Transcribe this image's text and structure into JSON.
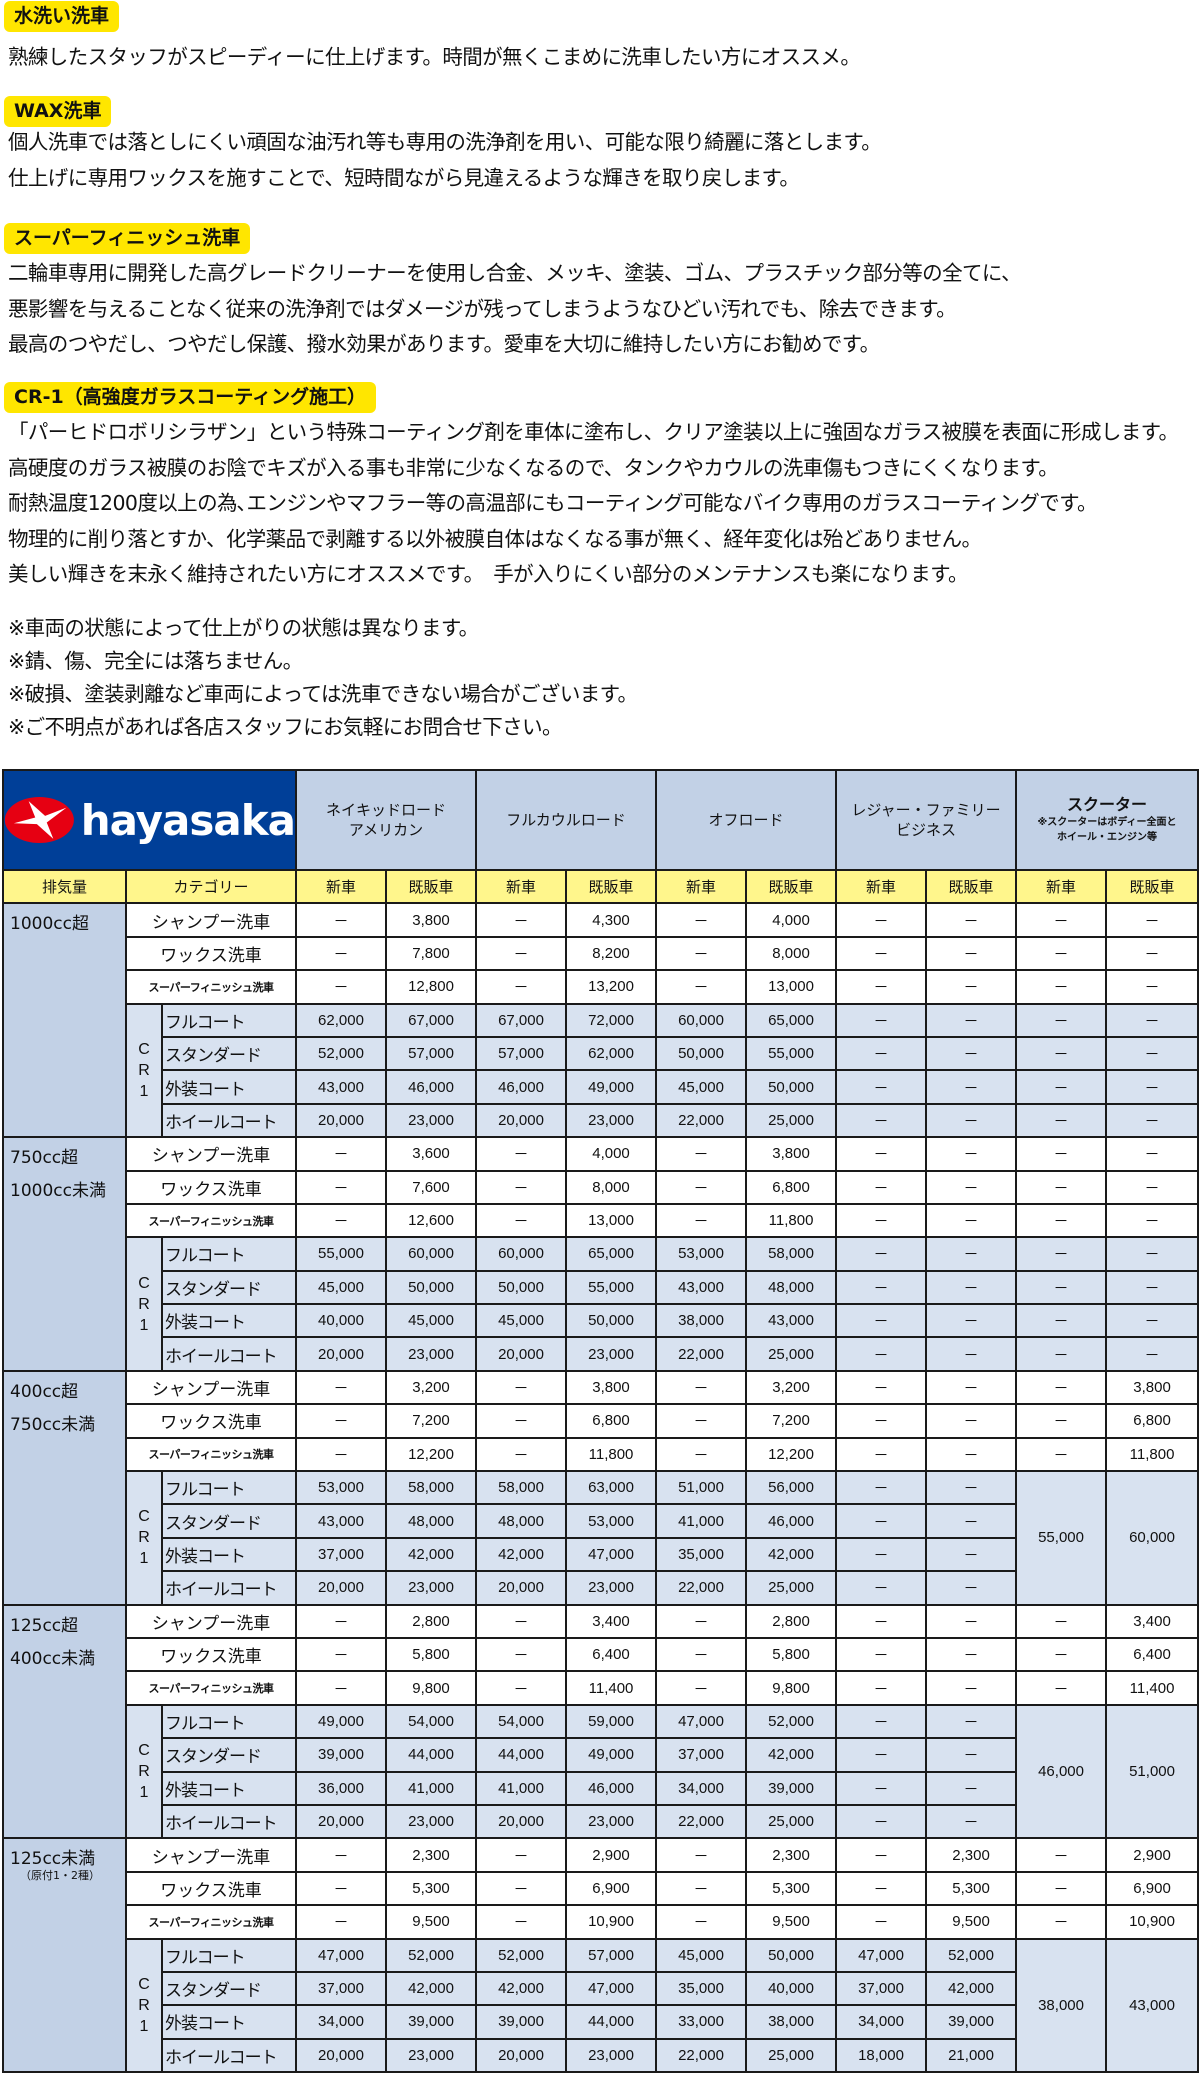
{
  "intro": {
    "sections": [
      {
        "heading": "水洗い洗車",
        "lines": [
          "熟練したスタッフがスピーディーに仕上げます。時間が無くこまめに洗車したい方にオススメ。"
        ]
      },
      {
        "heading": "WAX洗車",
        "lines": [
          "個人洗車では落としにくい頑固な油汚れ等も専用の洗浄剤を用い、可能な限り綺麗に落とします。",
          "仕上げに専用ワックスを施すことで、短時間ながら見違えるような輝きを取り戻します。"
        ]
      },
      {
        "heading": "スーパーフィニッシュ洗車",
        "lines": [
          "二輪車専用に開発した高グレードクリーナーを使用し合金、メッキ、塗装、ゴム、プラスチック部分等の全てに、",
          "悪影響を与えることなく従来の洗浄剤ではダメージが残ってしまうようなひどい汚れでも、除去できます。",
          "最高のつやだし、つやだし保護、撥水効果があります。愛車を大切に維持したい方にお勧めです。"
        ]
      },
      {
        "heading": "CR-1（高強度ガラスコーティング施工）",
        "lines": [
          "「パーヒドロボリシラザン」という特殊コーティング剤を車体に塗布し、クリア塗装以上に強固なガラス被膜を表面に形成します。",
          "高硬度のガラス被膜のお陰でキズが入る事も非常に少なくなるので、タンクやカウルの洗車傷もつきにくくなります。",
          "耐熱温度1200度以上の為､エンジンやマフラー等の高温部にもコーティング可能なバイク専用のガラスコーティングです。",
          "物理的に削り落とすか、化学薬品で剥離する以外被膜自体はなくなる事が無く、経年変化は殆どありません。",
          "美しい輝きを末永く維持されたい方にオススメです。　手が入りにくい部分のメンテナンスも楽になります。"
        ]
      }
    ],
    "notes": [
      "※車両の状態によって仕上がりの状態は異なります。",
      "※錆、傷、完全には落ちません。",
      "※破損、塗装剥離など車両によっては洗車できない場合がございます。",
      "※ご不明点があれば各店スタッフにお気軽にお問合せ下さい。"
    ]
  },
  "colors": {
    "heading_yellow": "#ffe600",
    "logo_blue": "#003f98",
    "logo_red": "#e60012",
    "header_blue": "#c2d1e6",
    "cr_blue": "#d8e2f0",
    "subheader_yellow": "#fff68c"
  },
  "table": {
    "logo_text": "hayasaka",
    "vehicle_types": [
      {
        "lines": [
          "ネイキッドロード",
          "アメリカン"
        ]
      },
      {
        "lines": [
          "フルカウルロード"
        ]
      },
      {
        "lines": [
          "オフロード"
        ]
      },
      {
        "lines": [
          "レジャー・ファミリー",
          "ビジネス"
        ]
      },
      {
        "title": "スクーター",
        "notes": [
          "※スクーターはボディー全面と",
          "ホイール・エンジン等"
        ]
      }
    ],
    "header": {
      "displacement": "排気量",
      "category": "カテゴリー",
      "new": "新車",
      "used": "既販車"
    },
    "cr_label": "CR1",
    "groups": [
      {
        "label": [
          "1000cc超"
        ],
        "wash": [
          {
            "name": "シャンプー洗車",
            "values": [
              "－",
              "3,800",
              "－",
              "4,300",
              "－",
              "4,000",
              "－",
              "－",
              "－",
              "－"
            ]
          },
          {
            "name": "ワックス洗車",
            "values": [
              "－",
              "7,800",
              "－",
              "8,200",
              "－",
              "8,000",
              "－",
              "－",
              "－",
              "－"
            ]
          },
          {
            "name": "スーパーフィニッシュ洗車",
            "values": [
              "－",
              "12,800",
              "－",
              "13,200",
              "－",
              "13,000",
              "－",
              "－",
              "－",
              "－"
            ]
          }
        ],
        "cr": [
          {
            "name": "フルコート",
            "values": [
              "62,000",
              "67,000",
              "67,000",
              "72,000",
              "60,000",
              "65,000",
              "－",
              "－",
              "－",
              "－"
            ]
          },
          {
            "name": "スタンダード",
            "values": [
              "52,000",
              "57,000",
              "57,000",
              "62,000",
              "50,000",
              "55,000",
              "－",
              "－",
              "－",
              "－"
            ]
          },
          {
            "name": "外装コート",
            "values": [
              "43,000",
              "46,000",
              "46,000",
              "49,000",
              "45,000",
              "50,000",
              "－",
              "－",
              "－",
              "－"
            ]
          },
          {
            "name": "ホイールコート",
            "values": [
              "20,000",
              "23,000",
              "20,000",
              "23,000",
              "22,000",
              "25,000",
              "－",
              "－",
              "－",
              "－"
            ]
          }
        ]
      },
      {
        "label": [
          "750cc超",
          "1000cc未満"
        ],
        "wash": [
          {
            "name": "シャンプー洗車",
            "values": [
              "－",
              "3,600",
              "－",
              "4,000",
              "－",
              "3,800",
              "－",
              "－",
              "－",
              "－"
            ]
          },
          {
            "name": "ワックス洗車",
            "values": [
              "－",
              "7,600",
              "－",
              "8,000",
              "－",
              "6,800",
              "－",
              "－",
              "－",
              "－"
            ]
          },
          {
            "name": "スーパーフィニッシュ洗車",
            "values": [
              "－",
              "12,600",
              "－",
              "13,000",
              "－",
              "11,800",
              "－",
              "－",
              "－",
              "－"
            ]
          }
        ],
        "cr": [
          {
            "name": "フルコート",
            "values": [
              "55,000",
              "60,000",
              "60,000",
              "65,000",
              "53,000",
              "58,000",
              "－",
              "－",
              "－",
              "－"
            ]
          },
          {
            "name": "スタンダード",
            "values": [
              "45,000",
              "50,000",
              "50,000",
              "55,000",
              "43,000",
              "48,000",
              "－",
              "－",
              "－",
              "－"
            ]
          },
          {
            "name": "外装コート",
            "values": [
              "40,000",
              "45,000",
              "45,000",
              "50,000",
              "38,000",
              "43,000",
              "－",
              "－",
              "－",
              "－"
            ]
          },
          {
            "name": "ホイールコート",
            "values": [
              "20,000",
              "23,000",
              "20,000",
              "23,000",
              "22,000",
              "25,000",
              "－",
              "－",
              "－",
              "－"
            ]
          }
        ]
      },
      {
        "label": [
          "400cc超",
          "750cc未満"
        ],
        "wash": [
          {
            "name": "シャンプー洗車",
            "values": [
              "－",
              "3,200",
              "－",
              "3,800",
              "－",
              "3,200",
              "－",
              "－",
              "－",
              "3,800"
            ]
          },
          {
            "name": "ワックス洗車",
            "values": [
              "－",
              "7,200",
              "－",
              "6,800",
              "－",
              "7,200",
              "－",
              "－",
              "－",
              "6,800"
            ]
          },
          {
            "name": "スーパーフィニッシュ洗車",
            "values": [
              "－",
              "12,200",
              "－",
              "11,800",
              "－",
              "12,200",
              "－",
              "－",
              "－",
              "11,800"
            ]
          }
        ],
        "cr": [
          {
            "name": "フルコート",
            "values": [
              "53,000",
              "58,000",
              "58,000",
              "63,000",
              "51,000",
              "56,000",
              "－",
              "－"
            ]
          },
          {
            "name": "スタンダード",
            "values": [
              "43,000",
              "48,000",
              "48,000",
              "53,000",
              "41,000",
              "46,000",
              "－",
              "－"
            ]
          },
          {
            "name": "外装コート",
            "values": [
              "37,000",
              "42,000",
              "42,000",
              "47,000",
              "35,000",
              "42,000",
              "－",
              "－"
            ]
          },
          {
            "name": "ホイールコート",
            "values": [
              "20,000",
              "23,000",
              "20,000",
              "23,000",
              "22,000",
              "25,000",
              "－",
              "－"
            ]
          }
        ],
        "scooter_cr": [
          "55,000",
          "60,000"
        ]
      },
      {
        "label": [
          "125cc超",
          "400cc未満"
        ],
        "wash": [
          {
            "name": "シャンプー洗車",
            "values": [
              "－",
              "2,800",
              "－",
              "3,400",
              "－",
              "2,800",
              "－",
              "－",
              "－",
              "3,400"
            ]
          },
          {
            "name": "ワックス洗車",
            "values": [
              "－",
              "5,800",
              "－",
              "6,400",
              "－",
              "5,800",
              "－",
              "－",
              "－",
              "6,400"
            ]
          },
          {
            "name": "スーパーフィニッシュ洗車",
            "values": [
              "－",
              "9,800",
              "－",
              "11,400",
              "－",
              "9,800",
              "－",
              "－",
              "－",
              "11,400"
            ]
          }
        ],
        "cr": [
          {
            "name": "フルコート",
            "values": [
              "49,000",
              "54,000",
              "54,000",
              "59,000",
              "47,000",
              "52,000",
              "－",
              "－"
            ]
          },
          {
            "name": "スタンダード",
            "values": [
              "39,000",
              "44,000",
              "44,000",
              "49,000",
              "37,000",
              "42,000",
              "－",
              "－"
            ]
          },
          {
            "name": "外装コート",
            "values": [
              "36,000",
              "41,000",
              "41,000",
              "46,000",
              "34,000",
              "39,000",
              "－",
              "－"
            ]
          },
          {
            "name": "ホイールコート",
            "values": [
              "20,000",
              "23,000",
              "20,000",
              "23,000",
              "22,000",
              "25,000",
              "－",
              "－"
            ]
          }
        ],
        "scooter_cr": [
          "46,000",
          "51,000"
        ]
      },
      {
        "label": [
          "125cc未満"
        ],
        "sublabel": "（原付1・2種）",
        "wash": [
          {
            "name": "シャンプー洗車",
            "values": [
              "－",
              "2,300",
              "－",
              "2,900",
              "－",
              "2,300",
              "－",
              "2,300",
              "－",
              "2,900"
            ]
          },
          {
            "name": "ワックス洗車",
            "values": [
              "－",
              "5,300",
              "－",
              "6,900",
              "－",
              "5,300",
              "－",
              "5,300",
              "－",
              "6,900"
            ]
          },
          {
            "name": "スーパーフィニッシュ洗車",
            "values": [
              "－",
              "9,500",
              "－",
              "10,900",
              "－",
              "9,500",
              "－",
              "9,500",
              "－",
              "10,900"
            ]
          }
        ],
        "cr": [
          {
            "name": "フルコート",
            "values": [
              "47,000",
              "52,000",
              "52,000",
              "57,000",
              "45,000",
              "50,000",
              "47,000",
              "52,000"
            ]
          },
          {
            "name": "スタンダード",
            "values": [
              "37,000",
              "42,000",
              "42,000",
              "47,000",
              "35,000",
              "40,000",
              "37,000",
              "42,000"
            ]
          },
          {
            "name": "外装コート",
            "values": [
              "34,000",
              "39,000",
              "39,000",
              "44,000",
              "33,000",
              "38,000",
              "34,000",
              "39,000"
            ]
          },
          {
            "name": "ホイールコート",
            "values": [
              "20,000",
              "23,000",
              "20,000",
              "23,000",
              "22,000",
              "25,000",
              "18,000",
              "21,000"
            ]
          }
        ],
        "scooter_cr": [
          "38,000",
          "43,000"
        ]
      }
    ]
  }
}
